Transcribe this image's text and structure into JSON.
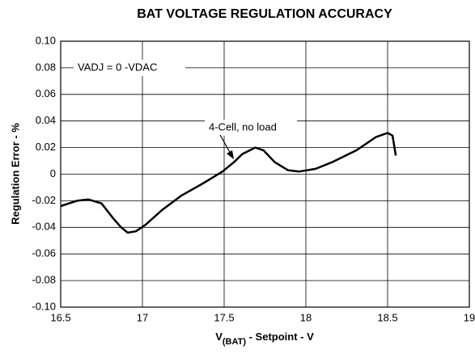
{
  "chart_data": {
    "type": "line",
    "title": "BAT VOLTAGE REGULATION ACCURACY",
    "xlabel": [
      "V",
      "(BAT)",
      " - Setpoint - V"
    ],
    "ylabel": "Regulation Error - %",
    "annotations": [
      "VADJ = 0 -VDAC",
      "4-Cell, no load"
    ],
    "x": [
      16.5,
      16.6,
      16.67,
      16.75,
      16.82,
      16.87,
      16.91,
      16.96,
      17.02,
      17.12,
      17.24,
      17.37,
      17.49,
      17.56,
      17.61,
      17.69,
      17.74,
      17.81,
      17.89,
      17.96,
      18.06,
      18.16,
      18.31,
      18.43,
      18.5,
      18.53,
      18.55
    ],
    "series": [
      {
        "color": "#000000",
        "values": [
          -0.024,
          -0.02,
          -0.019,
          -0.022,
          -0.033,
          -0.04,
          -0.044,
          -0.043,
          -0.038,
          -0.027,
          -0.016,
          -0.007,
          0.002,
          0.009,
          0.015,
          0.02,
          0.018,
          0.009,
          0.003,
          0.002,
          0.004,
          0.009,
          0.018,
          0.028,
          0.031,
          0.029,
          0.014
        ]
      }
    ],
    "xlim": [
      16.5,
      19
    ],
    "xticks": [
      16.5,
      17,
      17.5,
      18,
      18.5,
      19
    ],
    "ylim": [
      -0.1,
      0.1
    ],
    "yticks": [
      {
        "value": -0.1,
        "label": "-0.10"
      },
      -0.08,
      -0.06,
      -0.04,
      -0.02,
      0,
      0.02,
      0.04,
      0.06,
      0.08,
      {
        "value": 0.1,
        "label": "0.10"
      }
    ],
    "grid": true
  }
}
